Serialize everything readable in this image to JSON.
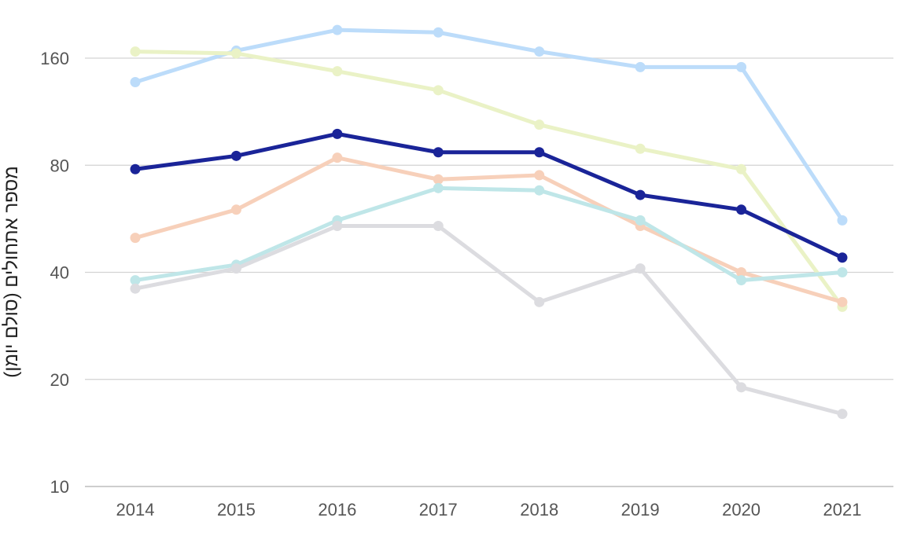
{
  "chart_data": {
    "type": "line",
    "title": "",
    "xlabel": "",
    "ylabel": "מספר אתחולים (סולם יומן)",
    "y_scale": "log2",
    "ylim": [
      10,
      200
    ],
    "y_ticks": [
      10,
      20,
      40,
      80,
      160
    ],
    "y_tick_labels": [
      "10",
      "20",
      "40",
      "80",
      "160"
    ],
    "grid": true,
    "legend": "none",
    "categories": [
      "2014",
      "2015",
      "2016",
      "2017",
      "2018",
      "2019",
      "2020",
      "2021"
    ],
    "series": [
      {
        "name": "series-light-blue",
        "color": "#bcdcfa",
        "values": [
          137,
          168,
          192,
          189,
          167,
          151,
          151,
          56
        ]
      },
      {
        "name": "series-light-yellow",
        "color": "#eaf2c6",
        "values": [
          167,
          165,
          147,
          130,
          104,
          89,
          78,
          32
        ]
      },
      {
        "name": "series-dark-navy",
        "color": "#1a2498",
        "values": [
          78,
          85,
          98,
          87,
          87,
          66,
          60,
          44
        ]
      },
      {
        "name": "series-peach",
        "color": "#f7d0ba",
        "values": [
          50,
          60,
          84,
          73,
          75,
          54,
          40,
          33
        ]
      },
      {
        "name": "series-light-teal",
        "color": "#bfe6e8",
        "values": [
          38,
          42,
          56,
          69,
          68,
          56,
          38,
          40
        ]
      },
      {
        "name": "series-light-grey",
        "color": "#dcdce0",
        "values": [
          36,
          41,
          54,
          54,
          33,
          41,
          19,
          16
        ]
      }
    ]
  }
}
